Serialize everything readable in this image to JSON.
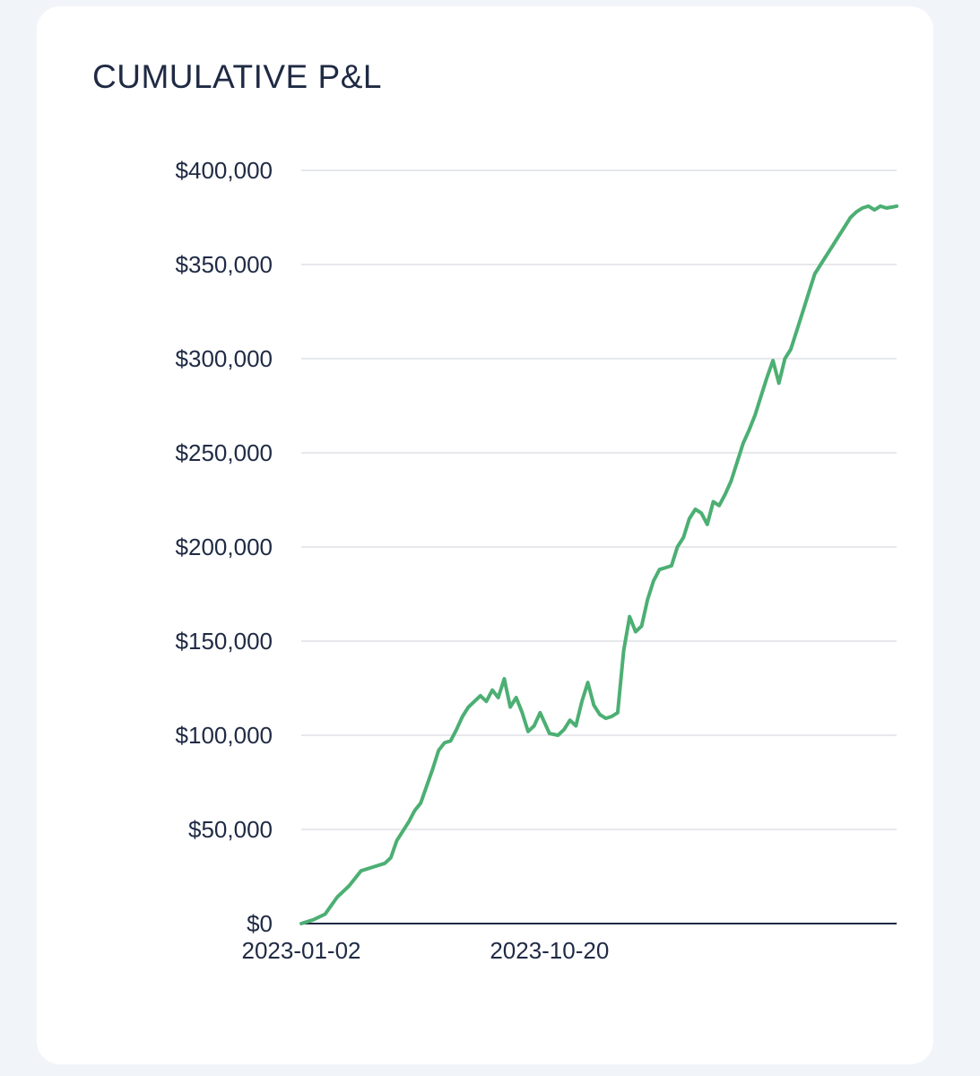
{
  "card": {
    "title": "CUMULATIVE P&L"
  },
  "chart_data": {
    "type": "line",
    "title": "CUMULATIVE P&L",
    "xlabel": "",
    "ylabel": "",
    "ylim": [
      0,
      400000
    ],
    "yticks": [
      0,
      50000,
      100000,
      150000,
      200000,
      250000,
      300000,
      350000,
      400000
    ],
    "ytick_labels": [
      "$0",
      "$50,000",
      "$100,000",
      "$150,000",
      "$200,000",
      "$250,000",
      "$300,000",
      "$350,000",
      "$400,000"
    ],
    "xlim": [
      "2023-01-02",
      "2024-11-30"
    ],
    "xticks": [
      "2023-01-02",
      "2023-10-20"
    ],
    "grid": true,
    "line_color": "#4caf73",
    "series": [
      {
        "name": "",
        "x": [
          "2023-01-02",
          "2023-01-16",
          "2023-01-30",
          "2023-02-13",
          "2023-02-27",
          "2023-03-13",
          "2023-03-27",
          "2023-04-10",
          "2023-04-17",
          "2023-04-24",
          "2023-05-08",
          "2023-05-15",
          "2023-05-22",
          "2023-06-05",
          "2023-06-12",
          "2023-06-19",
          "2023-06-26",
          "2023-07-03",
          "2023-07-10",
          "2023-07-17",
          "2023-07-31",
          "2023-08-07",
          "2023-08-14",
          "2023-08-21",
          "2023-08-28",
          "2023-09-04",
          "2023-09-11",
          "2023-09-18",
          "2023-09-25",
          "2023-10-02",
          "2023-10-09",
          "2023-10-20",
          "2023-10-30",
          "2023-11-06",
          "2023-11-13",
          "2023-11-20",
          "2023-11-27",
          "2023-12-04",
          "2023-12-11",
          "2023-12-18",
          "2023-12-25",
          "2024-01-01",
          "2024-01-08",
          "2024-01-15",
          "2024-01-22",
          "2024-01-29",
          "2024-02-05",
          "2024-02-12",
          "2024-02-19",
          "2024-02-26",
          "2024-03-04",
          "2024-03-11",
          "2024-03-18",
          "2024-03-25",
          "2024-04-01",
          "2024-04-08",
          "2024-04-15",
          "2024-04-22",
          "2024-04-29",
          "2024-05-06",
          "2024-05-13",
          "2024-05-20",
          "2024-05-27",
          "2024-06-03",
          "2024-06-10",
          "2024-06-17",
          "2024-06-24",
          "2024-07-01",
          "2024-07-08",
          "2024-07-15",
          "2024-07-22",
          "2024-07-29",
          "2024-08-05",
          "2024-08-12",
          "2024-08-19",
          "2024-08-26",
          "2024-09-02",
          "2024-09-09",
          "2024-09-16",
          "2024-09-23",
          "2024-09-30",
          "2024-10-07",
          "2024-10-14",
          "2024-10-21",
          "2024-10-28",
          "2024-11-04",
          "2024-11-11",
          "2024-11-18",
          "2024-11-25",
          "2024-11-30"
        ],
        "values": [
          0,
          2000,
          5000,
          14000,
          20000,
          28000,
          30000,
          32000,
          35000,
          44000,
          54000,
          60000,
          64000,
          82000,
          92000,
          96000,
          97000,
          103000,
          110000,
          115000,
          121000,
          118000,
          124000,
          120000,
          130000,
          115000,
          120000,
          112000,
          102000,
          105000,
          112000,
          101000,
          100000,
          103000,
          108000,
          105000,
          118000,
          128000,
          116000,
          111000,
          109000,
          110000,
          112000,
          145000,
          163000,
          155000,
          158000,
          172000,
          182000,
          188000,
          189000,
          190000,
          200000,
          205000,
          215000,
          220000,
          218000,
          212000,
          224000,
          222000,
          228000,
          235000,
          245000,
          255000,
          262000,
          270000,
          280000,
          290000,
          299000,
          287000,
          300000,
          305000,
          315000,
          325000,
          335000,
          345000,
          350000,
          355000,
          360000,
          365000,
          370000,
          375000,
          378000,
          380000,
          381000,
          379000,
          381000,
          380000,
          380500,
          381000
        ]
      }
    ]
  }
}
